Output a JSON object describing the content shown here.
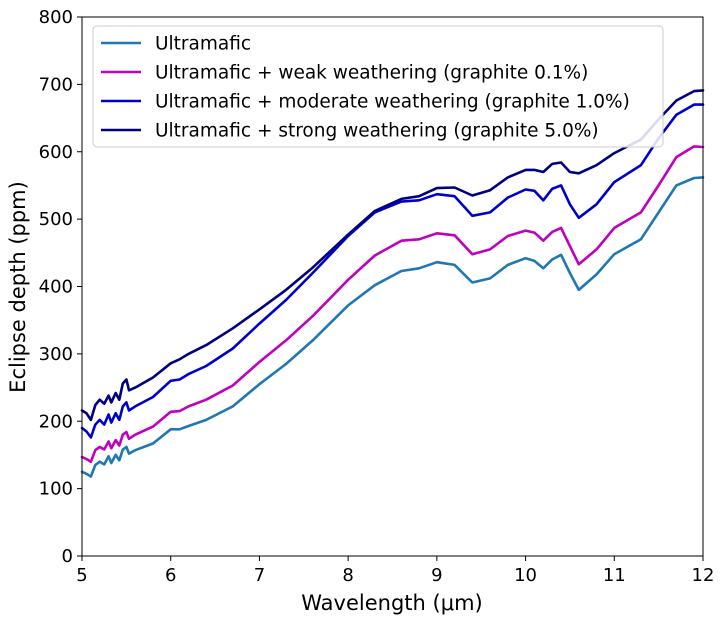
{
  "chart_data": {
    "type": "line",
    "title": "",
    "xlabel": "Wavelength (μm)",
    "ylabel": "Eclipse depth (ppm)",
    "xlim": [
      5,
      12
    ],
    "ylim": [
      0,
      800
    ],
    "xticks": [
      5,
      6,
      7,
      8,
      9,
      10,
      11,
      12
    ],
    "yticks": [
      0,
      100,
      200,
      300,
      400,
      500,
      600,
      700,
      800
    ],
    "grid": false,
    "legend_position": "top-left",
    "series": [
      {
        "name": "Ultramafic",
        "color": "#1f77b4",
        "points": [
          [
            5.0,
            125
          ],
          [
            5.05,
            122
          ],
          [
            5.1,
            118
          ],
          [
            5.15,
            135
          ],
          [
            5.2,
            140
          ],
          [
            5.25,
            136
          ],
          [
            5.3,
            148
          ],
          [
            5.33,
            138
          ],
          [
            5.38,
            150
          ],
          [
            5.42,
            142
          ],
          [
            5.46,
            158
          ],
          [
            5.5,
            162
          ],
          [
            5.53,
            152
          ],
          [
            5.6,
            157
          ],
          [
            5.8,
            167
          ],
          [
            6.0,
            188
          ],
          [
            6.1,
            188
          ],
          [
            6.2,
            193
          ],
          [
            6.4,
            202
          ],
          [
            6.7,
            222
          ],
          [
            7.0,
            255
          ],
          [
            7.3,
            285
          ],
          [
            7.6,
            320
          ],
          [
            8.0,
            372
          ],
          [
            8.3,
            402
          ],
          [
            8.6,
            423
          ],
          [
            8.8,
            427
          ],
          [
            9.0,
            436
          ],
          [
            9.2,
            432
          ],
          [
            9.4,
            406
          ],
          [
            9.6,
            412
          ],
          [
            9.8,
            432
          ],
          [
            10.0,
            442
          ],
          [
            10.1,
            438
          ],
          [
            10.2,
            427
          ],
          [
            10.3,
            440
          ],
          [
            10.4,
            447
          ],
          [
            10.5,
            420
          ],
          [
            10.6,
            395
          ],
          [
            10.8,
            418
          ],
          [
            11.0,
            448
          ],
          [
            11.3,
            470
          ],
          [
            11.5,
            510
          ],
          [
            11.7,
            550
          ],
          [
            11.9,
            561
          ],
          [
            12.0,
            562
          ]
        ]
      },
      {
        "name": "Ultramafic + weak weathering (graphite 0.1%)",
        "color": "#bf00bf",
        "points": [
          [
            5.0,
            147
          ],
          [
            5.05,
            144
          ],
          [
            5.1,
            140
          ],
          [
            5.15,
            157
          ],
          [
            5.2,
            162
          ],
          [
            5.25,
            158
          ],
          [
            5.3,
            170
          ],
          [
            5.33,
            160
          ],
          [
            5.38,
            172
          ],
          [
            5.42,
            164
          ],
          [
            5.46,
            180
          ],
          [
            5.5,
            184
          ],
          [
            5.53,
            174
          ],
          [
            5.6,
            180
          ],
          [
            5.8,
            192
          ],
          [
            6.0,
            214
          ],
          [
            6.1,
            215
          ],
          [
            6.2,
            222
          ],
          [
            6.4,
            232
          ],
          [
            6.7,
            253
          ],
          [
            7.0,
            288
          ],
          [
            7.3,
            320
          ],
          [
            7.6,
            356
          ],
          [
            8.0,
            410
          ],
          [
            8.3,
            446
          ],
          [
            8.6,
            468
          ],
          [
            8.8,
            470
          ],
          [
            9.0,
            479
          ],
          [
            9.2,
            476
          ],
          [
            9.4,
            448
          ],
          [
            9.6,
            455
          ],
          [
            9.8,
            475
          ],
          [
            10.0,
            483
          ],
          [
            10.1,
            480
          ],
          [
            10.2,
            468
          ],
          [
            10.3,
            481
          ],
          [
            10.4,
            487
          ],
          [
            10.5,
            460
          ],
          [
            10.6,
            433
          ],
          [
            10.8,
            455
          ],
          [
            11.0,
            487
          ],
          [
            11.3,
            510
          ],
          [
            11.5,
            550
          ],
          [
            11.7,
            592
          ],
          [
            11.9,
            608
          ],
          [
            12.0,
            607
          ]
        ]
      },
      {
        "name": "Ultramafic + moderate weathering (graphite 1.0%)",
        "color": "#0000cd",
        "points": [
          [
            5.0,
            190
          ],
          [
            5.05,
            185
          ],
          [
            5.1,
            176
          ],
          [
            5.15,
            195
          ],
          [
            5.2,
            202
          ],
          [
            5.25,
            195
          ],
          [
            5.3,
            210
          ],
          [
            5.33,
            198
          ],
          [
            5.38,
            212
          ],
          [
            5.42,
            202
          ],
          [
            5.46,
            222
          ],
          [
            5.5,
            228
          ],
          [
            5.53,
            216
          ],
          [
            5.6,
            222
          ],
          [
            5.8,
            236
          ],
          [
            6.0,
            260
          ],
          [
            6.1,
            262
          ],
          [
            6.2,
            270
          ],
          [
            6.4,
            282
          ],
          [
            6.7,
            308
          ],
          [
            7.0,
            345
          ],
          [
            7.3,
            380
          ],
          [
            7.6,
            420
          ],
          [
            8.0,
            475
          ],
          [
            8.3,
            510
          ],
          [
            8.6,
            526
          ],
          [
            8.8,
            528
          ],
          [
            9.0,
            537
          ],
          [
            9.2,
            534
          ],
          [
            9.4,
            505
          ],
          [
            9.6,
            510
          ],
          [
            9.8,
            532
          ],
          [
            10.0,
            544
          ],
          [
            10.1,
            542
          ],
          [
            10.2,
            528
          ],
          [
            10.3,
            545
          ],
          [
            10.4,
            550
          ],
          [
            10.5,
            522
          ],
          [
            10.6,
            502
          ],
          [
            10.8,
            522
          ],
          [
            11.0,
            555
          ],
          [
            11.3,
            580
          ],
          [
            11.5,
            620
          ],
          [
            11.7,
            655
          ],
          [
            11.9,
            670
          ],
          [
            12.0,
            670
          ]
        ]
      },
      {
        "name": "Ultramafic + strong weathering (graphite 5.0%)",
        "color": "#000080",
        "points": [
          [
            5.0,
            216
          ],
          [
            5.05,
            212
          ],
          [
            5.1,
            202
          ],
          [
            5.15,
            224
          ],
          [
            5.2,
            232
          ],
          [
            5.25,
            226
          ],
          [
            5.3,
            238
          ],
          [
            5.33,
            228
          ],
          [
            5.38,
            242
          ],
          [
            5.42,
            232
          ],
          [
            5.46,
            256
          ],
          [
            5.5,
            262
          ],
          [
            5.53,
            246
          ],
          [
            5.6,
            250
          ],
          [
            5.8,
            265
          ],
          [
            6.0,
            286
          ],
          [
            6.1,
            292
          ],
          [
            6.2,
            300
          ],
          [
            6.4,
            313
          ],
          [
            6.7,
            338
          ],
          [
            7.0,
            366
          ],
          [
            7.3,
            395
          ],
          [
            7.6,
            428
          ],
          [
            8.0,
            477
          ],
          [
            8.3,
            512
          ],
          [
            8.6,
            530
          ],
          [
            8.8,
            534
          ],
          [
            9.0,
            546
          ],
          [
            9.2,
            547
          ],
          [
            9.4,
            535
          ],
          [
            9.6,
            543
          ],
          [
            9.8,
            562
          ],
          [
            10.0,
            573
          ],
          [
            10.1,
            573
          ],
          [
            10.2,
            570
          ],
          [
            10.3,
            582
          ],
          [
            10.4,
            584
          ],
          [
            10.5,
            570
          ],
          [
            10.6,
            568
          ],
          [
            10.8,
            580
          ],
          [
            11.0,
            598
          ],
          [
            11.3,
            618
          ],
          [
            11.5,
            648
          ],
          [
            11.7,
            676
          ],
          [
            11.9,
            690
          ],
          [
            12.0,
            691
          ]
        ]
      }
    ]
  }
}
